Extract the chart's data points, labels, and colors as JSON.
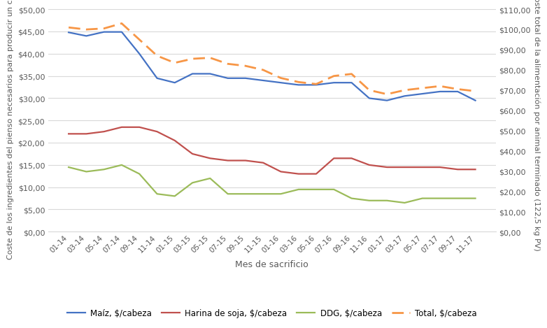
{
  "x_labels": [
    "01-14",
    "03-14",
    "05-14",
    "07-14",
    "09-14",
    "11-14",
    "01-15",
    "03-15",
    "05-15",
    "07-15",
    "09-15",
    "11-15",
    "01-16",
    "03-16",
    "05-16",
    "07-16",
    "09-16",
    "11-16",
    "01-17",
    "03-17",
    "05-17",
    "07-17",
    "09-17",
    "11-17"
  ],
  "maiz": [
    44.8,
    44.0,
    44.9,
    44.9,
    40.0,
    34.5,
    33.5,
    35.5,
    35.5,
    34.5,
    34.5,
    34.0,
    33.5,
    33.0,
    33.0,
    33.5,
    33.5,
    30.0,
    29.5,
    30.5,
    31.0,
    31.5,
    31.5,
    29.5
  ],
  "harina_soja": [
    22.0,
    22.0,
    22.5,
    23.5,
    23.5,
    22.5,
    20.5,
    17.5,
    16.5,
    16.0,
    16.0,
    15.5,
    13.5,
    13.0,
    13.0,
    16.5,
    16.5,
    15.0,
    14.5,
    14.5,
    14.5,
    14.5,
    14.0,
    14.0
  ],
  "ddg": [
    14.5,
    13.5,
    14.0,
    15.0,
    13.0,
    8.5,
    8.0,
    11.0,
    12.0,
    8.5,
    8.5,
    8.5,
    8.5,
    9.5,
    9.5,
    9.5,
    7.5,
    7.0,
    7.0,
    6.5,
    7.5,
    7.5,
    7.5,
    7.5
  ],
  "total": [
    101.0,
    100.0,
    100.5,
    103.0,
    95.0,
    87.0,
    83.5,
    85.5,
    86.0,
    83.0,
    82.0,
    80.0,
    76.0,
    74.0,
    73.0,
    77.0,
    78.0,
    70.0,
    68.0,
    70.0,
    71.0,
    72.0,
    70.5,
    69.5
  ],
  "maiz_color": "#4472C4",
  "harina_color": "#C0504D",
  "ddg_color": "#9BBB59",
  "total_color": "#F79646",
  "ylabel_left": "Coste de los ingredientes del pienso necesarios para producir un cerdo",
  "ylabel_right": "Coste total de la alimentación por animal terminado (122,5 kg PV)",
  "xlabel": "Mes de sacrificio",
  "ylim_left": [
    0,
    50
  ],
  "ylim_right": [
    0,
    110
  ],
  "yticks_left": [
    0,
    5,
    10,
    15,
    20,
    25,
    30,
    35,
    40,
    45,
    50
  ],
  "yticks_right": [
    0,
    10,
    20,
    30,
    40,
    50,
    60,
    70,
    80,
    90,
    100,
    110
  ],
  "legend_labels": [
    "Maíz, $/cabeza",
    "Harina de soja, $/cabeza",
    "DDG, $/cabeza",
    "Total, $/cabeza"
  ],
  "bg_color": "#FFFFFF",
  "grid_color": "#D9D9D9",
  "text_color": "#595959",
  "tick_fontsize": 8,
  "label_fontsize": 8,
  "legend_fontsize": 8.5
}
